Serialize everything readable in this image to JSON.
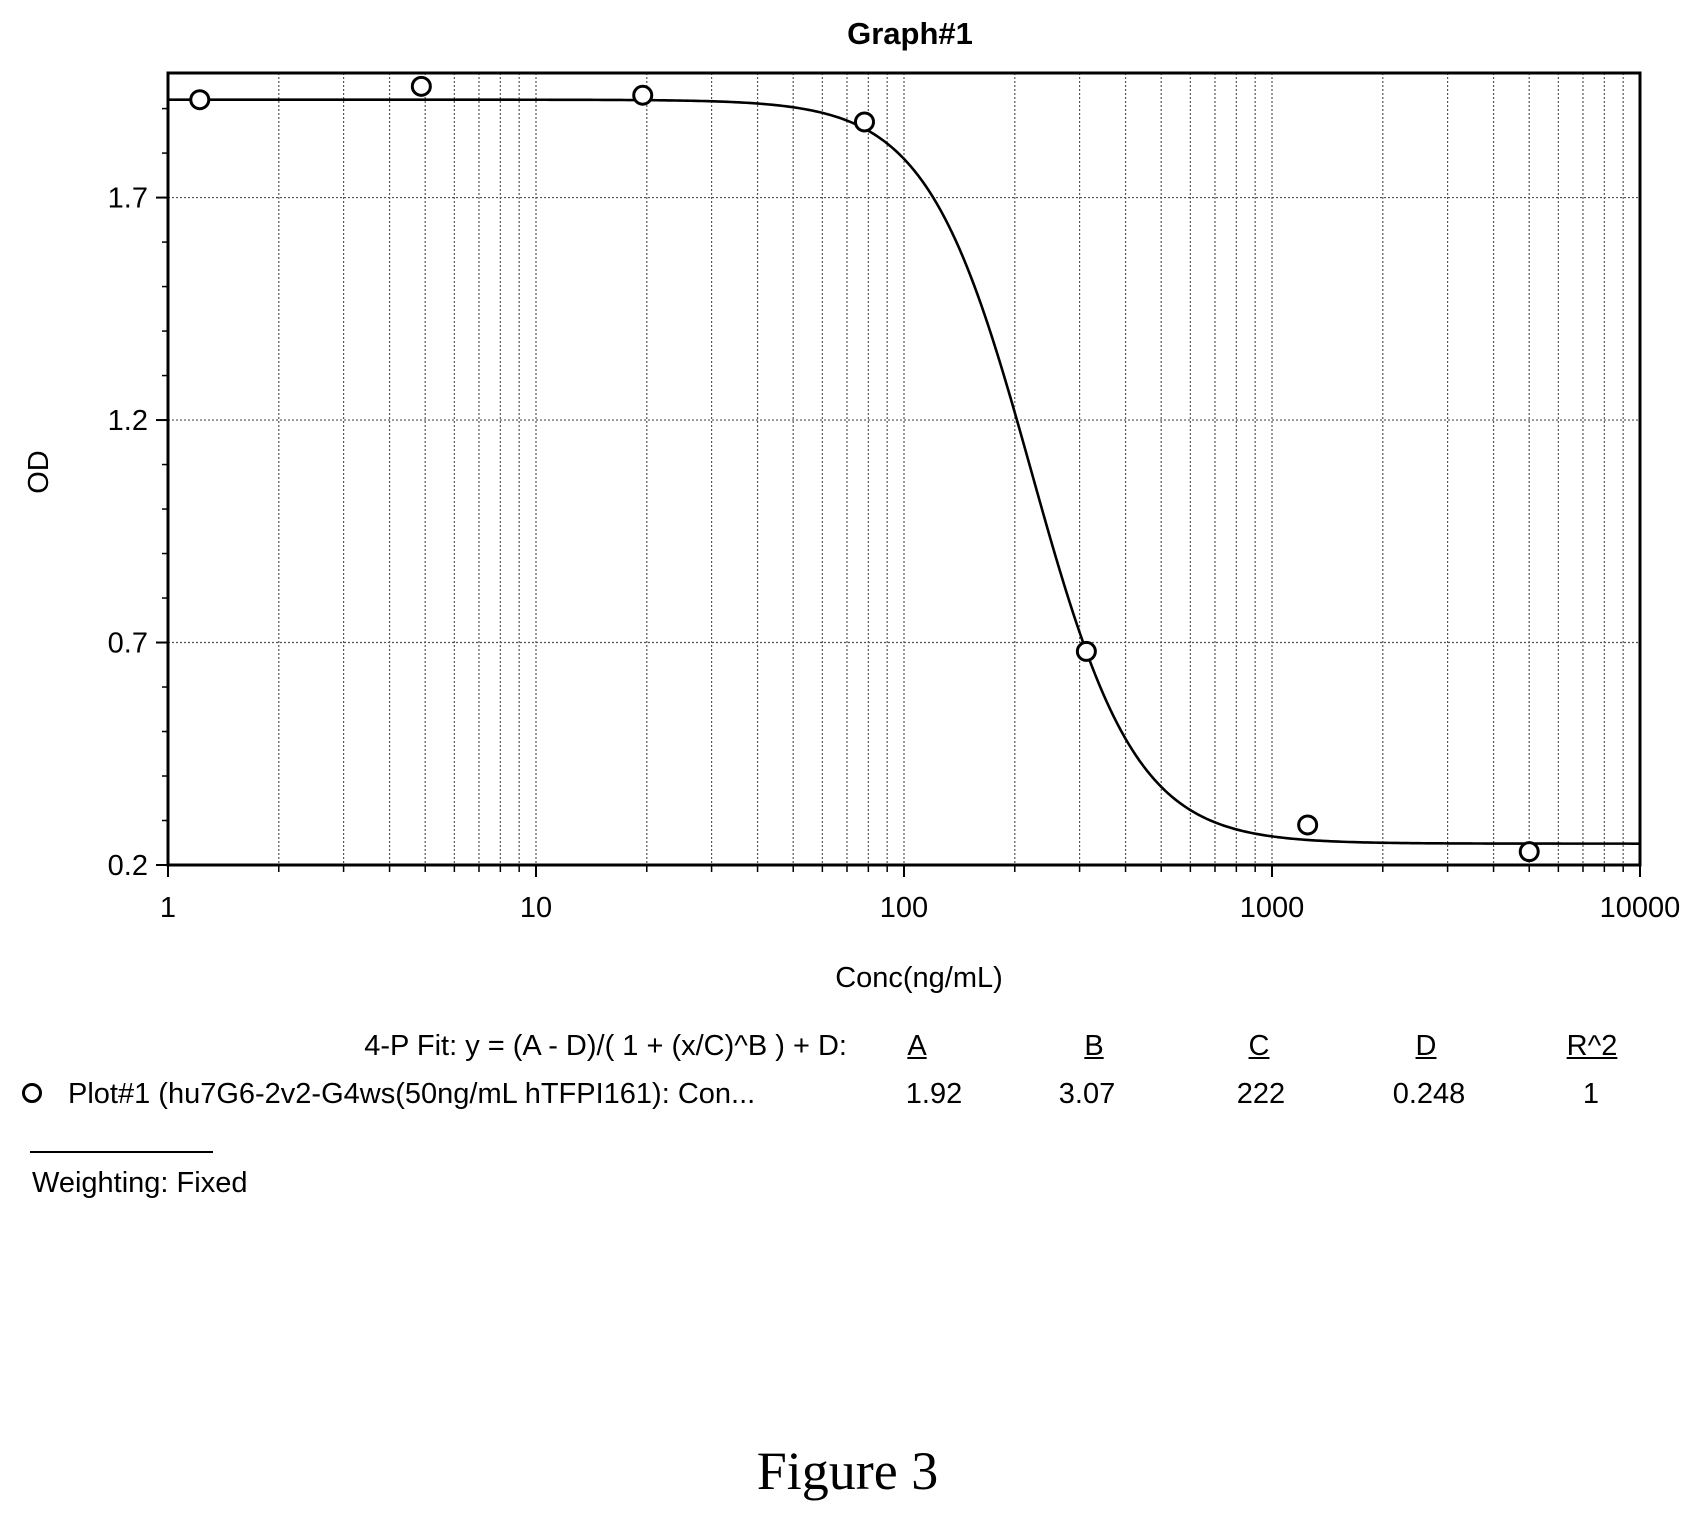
{
  "chart_data": {
    "type": "scatter",
    "title": "Graph#1",
    "xlabel": "Conc(ng/mL)",
    "ylabel": "OD",
    "x_scale": "log",
    "xlim": [
      1,
      10000
    ],
    "ylim": [
      0.2,
      1.98
    ],
    "x_ticks": [
      1,
      10,
      100,
      1000,
      10000
    ],
    "x_tick_labels": [
      "1",
      "10",
      "100",
      "1000",
      "10000"
    ],
    "y_ticks": [
      0.2,
      0.7,
      1.2,
      1.7
    ],
    "y_tick_labels": [
      "0.2",
      "0.7",
      "1.2",
      "1.7"
    ],
    "grid": true,
    "series": [
      {
        "name": "Plot#1 (hu7G6-2v2-G4ws(50ng/mL hTFPI161): Con...",
        "marker": "open-circle",
        "x": [
          1.22,
          4.88,
          19.5,
          78.1,
          313,
          1250,
          5000
        ],
        "y": [
          1.92,
          1.95,
          1.93,
          1.87,
          0.68,
          0.29,
          0.23
        ]
      }
    ],
    "fit": {
      "model": "4-P Fit: y = (A - D)/( 1 + (x/C)^B ) + D:",
      "params": {
        "A": 1.92,
        "B": 3.07,
        "C": 222,
        "D": 0.248
      }
    }
  },
  "fit_table": {
    "equation": "4-P Fit: y = (A - D)/( 1 + (x/C)^B ) + D:",
    "headers": [
      "A",
      "B",
      "C",
      "D",
      "R^2"
    ],
    "row_label": "Plot#1 (hu7G6-2v2-G4ws(50ng/mL hTFPI161): Con...",
    "values": [
      "1.92",
      "3.07",
      "222",
      "0.248",
      "1"
    ]
  },
  "weighting": "Weighting: Fixed",
  "caption": "Figure 3"
}
